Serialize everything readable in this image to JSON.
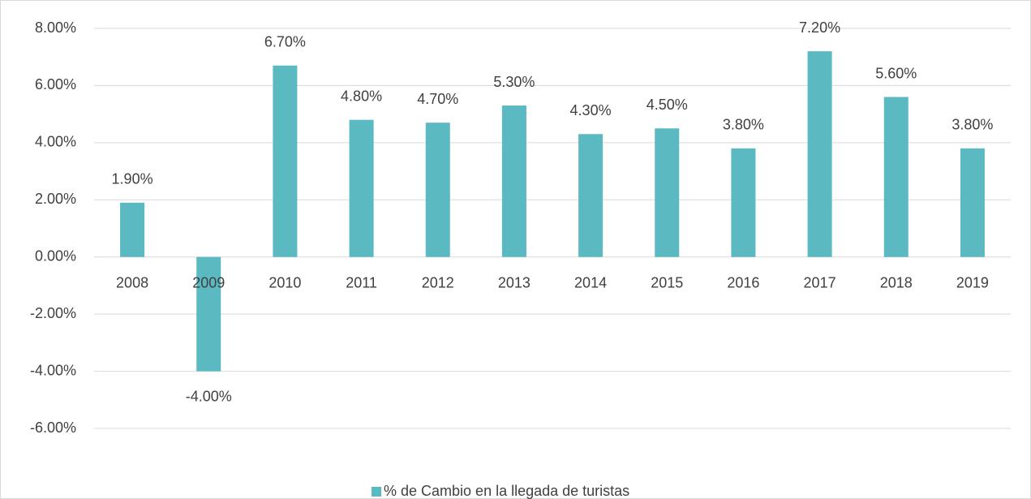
{
  "chart_data": {
    "type": "bar",
    "categories": [
      "2008",
      "2009",
      "2010",
      "2011",
      "2012",
      "2013",
      "2014",
      "2015",
      "2016",
      "2017",
      "2018",
      "2019"
    ],
    "series": [
      {
        "name": "% de Cambio en la llegada de turistas",
        "color": "#5ab9c1",
        "values": [
          1.9,
          -4,
          6.7,
          4.8,
          4.7,
          5.3,
          4.3,
          4.5,
          3.8,
          7.2,
          5.6,
          3.8
        ],
        "value_labels": [
          "1.90%",
          "-4.00%",
          "6.70%",
          "4.80%",
          "4.70%",
          "5.30%",
          "4.30%",
          "4.50%",
          "3.80%",
          "7.20%",
          "5.60%",
          "3.80%"
        ]
      }
    ],
    "ylim": [
      -6,
      8
    ],
    "yticks": [
      {
        "value": -6,
        "label": "-6.00%"
      },
      {
        "value": -4,
        "label": "-4.00%"
      },
      {
        "value": -2,
        "label": "-2.00%"
      },
      {
        "value": 0,
        "label": "0.00%"
      },
      {
        "value": 2,
        "label": "2.00%"
      },
      {
        "value": 4,
        "label": "4.00%"
      },
      {
        "value": 6,
        "label": "6.00%"
      },
      {
        "value": 8,
        "label": "8.00%"
      }
    ],
    "grid": true,
    "legend": "bottom"
  }
}
